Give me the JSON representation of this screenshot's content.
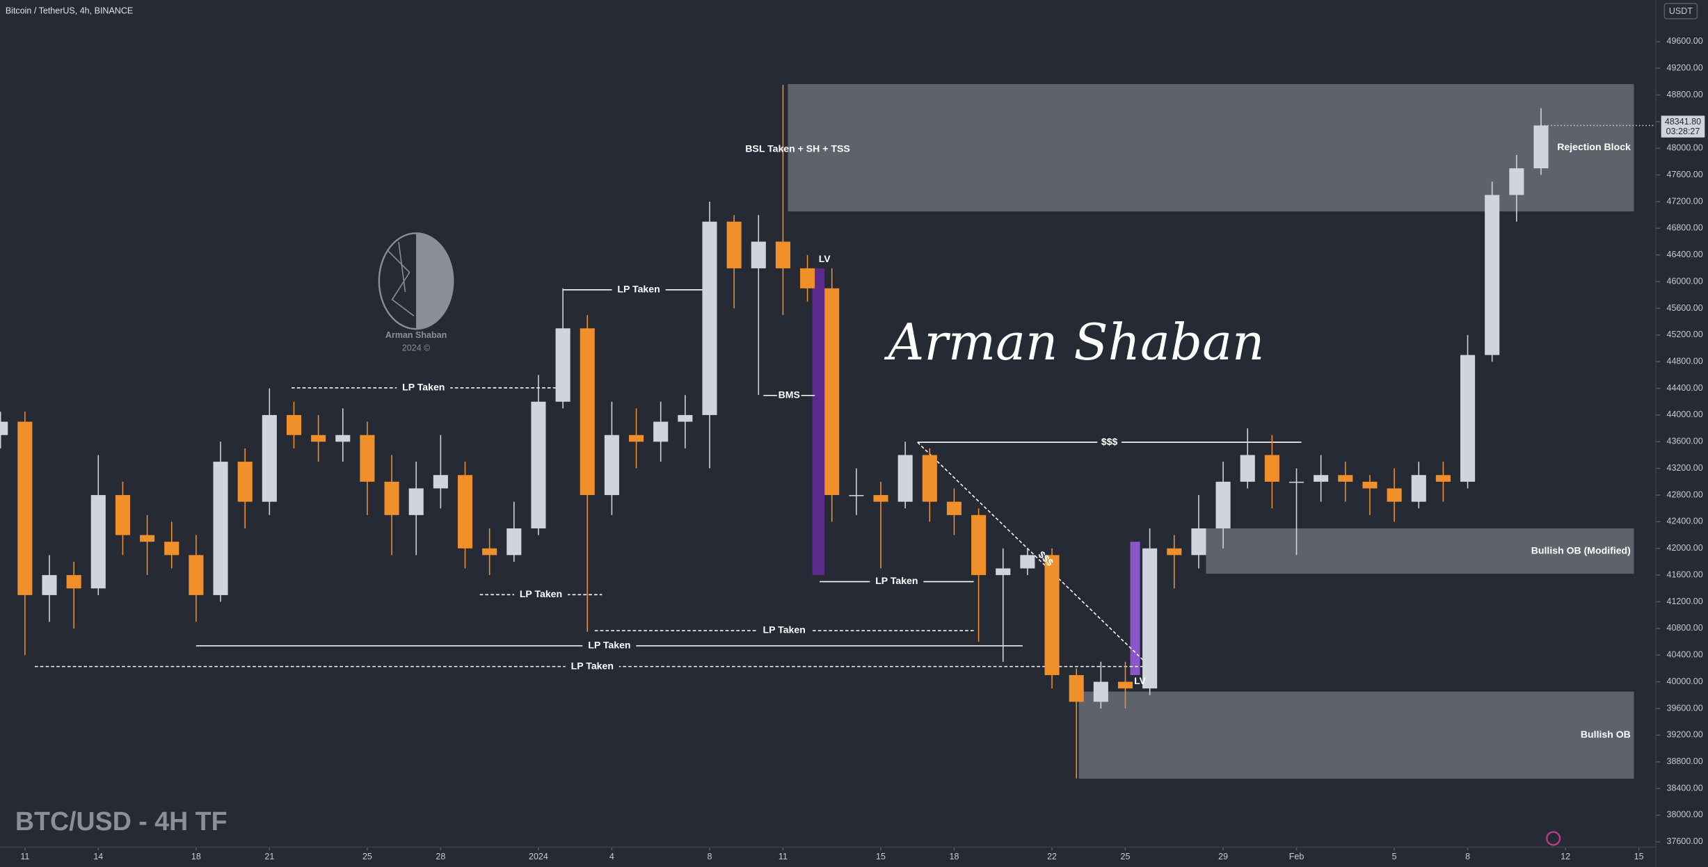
{
  "chart_data": {
    "type": "candlestick",
    "title": "Bitcoin / TetherUS, 4h, BINANCE",
    "currency": "USDT",
    "watermark": "BTC/USD - 4H TF",
    "signature": "Arman Shaban",
    "logo_name": "Arman Shaban",
    "logo_year": "2024 ©",
    "up_color": "#d1d4dc",
    "down_color": "#f0902a",
    "x": [
      -1,
      0,
      1,
      2,
      3,
      4,
      5,
      6,
      7,
      8,
      9,
      10,
      11,
      12,
      13,
      14,
      15,
      16,
      17,
      18,
      19,
      20,
      21,
      22,
      23,
      24,
      25,
      26,
      27,
      28,
      29,
      30,
      31,
      32,
      33,
      34,
      35,
      36,
      37,
      38,
      39,
      40,
      41,
      42,
      43,
      44,
      45,
      46,
      47,
      48,
      49,
      50,
      51,
      52,
      53,
      54,
      55,
      56,
      57,
      58,
      59,
      60,
      61,
      62
    ],
    "open": [
      43700,
      43900,
      41300,
      41600,
      41400,
      42800,
      42200,
      42100,
      41900,
      41300,
      43300,
      42700,
      44000,
      43700,
      43600,
      43700,
      43000,
      42500,
      42900,
      43100,
      42000,
      41900,
      42300,
      44200,
      45300,
      42800,
      43700,
      43600,
      43900,
      44000,
      46900,
      46200,
      46600,
      46200,
      45900,
      42800,
      42800,
      42700,
      43400,
      42700,
      42500,
      41600,
      41700,
      41900,
      40100,
      39700,
      40000,
      39900,
      42000,
      41900,
      42300,
      43000,
      43400,
      43000,
      43000,
      43100,
      43000,
      42900,
      42700,
      43100,
      43000,
      44900,
      47300,
      47700
    ],
    "high": [
      44050,
      44050,
      41900,
      41800,
      43400,
      43000,
      42500,
      42400,
      42200,
      43600,
      43500,
      44400,
      44200,
      44000,
      44100,
      43900,
      43400,
      43300,
      43700,
      43300,
      42300,
      42700,
      44600,
      45900,
      45500,
      44200,
      44100,
      44200,
      44300,
      47200,
      47000,
      47000,
      48950,
      46400,
      46200,
      43200,
      43000,
      43600,
      43500,
      42900,
      42600,
      42000,
      42000,
      42000,
      40200,
      40300,
      40300,
      42300,
      42200,
      42800,
      43300,
      43800,
      43700,
      43200,
      43400,
      43300,
      43100,
      43200,
      43300,
      43300,
      45200,
      47500,
      47900,
      48600
    ],
    "low": [
      43500,
      40400,
      40900,
      40800,
      41300,
      41900,
      41600,
      41700,
      40900,
      41200,
      42300,
      42500,
      43500,
      43300,
      43300,
      42500,
      41900,
      41900,
      42600,
      41700,
      41600,
      41800,
      42200,
      44100,
      40750,
      42500,
      43200,
      43300,
      43500,
      43200,
      45600,
      44300,
      45500,
      45700,
      42400,
      42500,
      41700,
      42600,
      42400,
      42200,
      40600,
      40300,
      41600,
      39900,
      38550,
      39600,
      39600,
      39800,
      41400,
      41700,
      42000,
      42900,
      42600,
      41900,
      42700,
      42700,
      42500,
      42400,
      42600,
      42700,
      42900,
      44800,
      46900,
      47600
    ],
    "close": [
      43900,
      41300,
      41600,
      41400,
      42800,
      42200,
      42100,
      41900,
      41300,
      43300,
      42700,
      44000,
      43700,
      43600,
      43700,
      43000,
      42500,
      42900,
      43100,
      42000,
      41900,
      42300,
      44200,
      45300,
      42800,
      43700,
      43600,
      43900,
      44000,
      46900,
      46200,
      46600,
      46200,
      45900,
      42800,
      42800,
      42700,
      43400,
      42700,
      42500,
      41600,
      41700,
      41900,
      40100,
      39700,
      40000,
      39900,
      42000,
      41900,
      42300,
      43000,
      43400,
      43000,
      43000,
      43100,
      43000,
      42900,
      42700,
      43100,
      43000,
      44900,
      47300,
      47700,
      48341.8
    ],
    "last_price": {
      "value": 48341.8,
      "label": "48341.80"
    },
    "countdown": "03:28:27",
    "xlim": [
      -1.02,
      66.69
    ],
    "xticks": [
      {
        "value": 0,
        "label": "11"
      },
      {
        "value": 3,
        "label": "14"
      },
      {
        "value": 7,
        "label": "18"
      },
      {
        "value": 10,
        "label": "21"
      },
      {
        "value": 14,
        "label": "25"
      },
      {
        "value": 17,
        "label": "28"
      },
      {
        "value": 21,
        "label": "2024"
      },
      {
        "value": 24,
        "label": "4"
      },
      {
        "value": 28,
        "label": "8"
      },
      {
        "value": 31,
        "label": "11"
      },
      {
        "value": 35,
        "label": "15"
      },
      {
        "value": 38,
        "label": "18"
      },
      {
        "value": 42,
        "label": "22"
      },
      {
        "value": 45,
        "label": "25"
      },
      {
        "value": 49,
        "label": "29"
      },
      {
        "value": 52,
        "label": "Feb"
      },
      {
        "value": 56,
        "label": "5"
      },
      {
        "value": 59,
        "label": "8"
      },
      {
        "value": 63,
        "label": "12"
      },
      {
        "value": 66,
        "label": "15"
      }
    ],
    "ylim": [
      37520,
      50220
    ],
    "yticks": [
      {
        "value": 37600,
        "label": "37600.00"
      },
      {
        "value": 38000,
        "label": "38000.00"
      },
      {
        "value": 38400,
        "label": "38400.00"
      },
      {
        "value": 38800,
        "label": "38800.00"
      },
      {
        "value": 39200,
        "label": "39200.00"
      },
      {
        "value": 39600,
        "label": "39600.00"
      },
      {
        "value": 40000,
        "label": "40000.00"
      },
      {
        "value": 40400,
        "label": "40400.00"
      },
      {
        "value": 40800,
        "label": "40800.00"
      },
      {
        "value": 41200,
        "label": "41200.00"
      },
      {
        "value": 41600,
        "label": "41600.00"
      },
      {
        "value": 42000,
        "label": "42000.00"
      },
      {
        "value": 42400,
        "label": "42400.00"
      },
      {
        "value": 42800,
        "label": "42800.00"
      },
      {
        "value": 43200,
        "label": "43200.00"
      },
      {
        "value": 43600,
        "label": "43600.00"
      },
      {
        "value": 44000,
        "label": "44000.00"
      },
      {
        "value": 44400,
        "label": "44400.00"
      },
      {
        "value": 44800,
        "label": "44800.00"
      },
      {
        "value": 45200,
        "label": "45200.00"
      },
      {
        "value": 45600,
        "label": "45600.00"
      },
      {
        "value": 46000,
        "label": "46000.00"
      },
      {
        "value": 46400,
        "label": "46400.00"
      },
      {
        "value": 46800,
        "label": "46800.00"
      },
      {
        "value": 47200,
        "label": "47200.00"
      },
      {
        "value": 47600,
        "label": "47600.00"
      },
      {
        "value": 48000,
        "label": "48000.00"
      },
      {
        "value": 48400,
        "label": "48400.00"
      },
      {
        "value": 48800,
        "label": "48800.00"
      },
      {
        "value": 49200,
        "label": "49200.00"
      },
      {
        "value": 49600,
        "label": "49600.00"
      }
    ],
    "boxes": [
      {
        "label": "Rejection Block",
        "x1": 31.2,
        "x2": 65.8,
        "low": 47053,
        "high": 48963
      },
      {
        "label": "Bullish OB (Modified)",
        "x1": 48.3,
        "x2": 65.8,
        "low": 41620,
        "high": 42300
      },
      {
        "label": "Bullish OB",
        "x1": 43.1,
        "x2": 65.8,
        "low": 38547,
        "high": 39853
      }
    ],
    "zones": [
      {
        "label": "LV",
        "x1": 32.2,
        "x2": 32.7,
        "low": 41600,
        "high": 46200
      },
      {
        "label": "LV",
        "x1": 45.2,
        "x2": 45.6,
        "low": 40100,
        "high": 42100
      }
    ],
    "levels": [
      {
        "label": "LP Taken",
        "price": 45878,
        "x1": 22.0,
        "x2": 28.2,
        "dashed": false
      },
      {
        "label": "LP Taken",
        "price": 44408,
        "x1": 10.9,
        "x2": 21.7,
        "dashed": true
      },
      {
        "label": "LP Taken",
        "price": 41306,
        "x1": 18.6,
        "x2": 23.6,
        "dashed": true
      },
      {
        "label": "LP Taken",
        "price": 40767,
        "x1": 23.3,
        "x2": 38.8,
        "dashed": true
      },
      {
        "label": "LP Taken",
        "price": 40539,
        "x1": 7.0,
        "x2": 40.8,
        "dashed": false
      },
      {
        "label": "LP Taken",
        "price": 40229,
        "x1": 0.4,
        "x2": 46.0,
        "dashed": true
      },
      {
        "label": "LP Taken",
        "price": 41502,
        "x1": 32.5,
        "x2": 38.8,
        "dashed": false
      },
      {
        "label": "$$$",
        "price": 43592,
        "x1": 36.5,
        "x2": 52.2,
        "dashed": false
      },
      {
        "label": "BMS",
        "price": 44294,
        "x1": 30.2,
        "x2": 32.3,
        "dashed": false
      }
    ],
    "diagonal": {
      "label": "$$$",
      "x1": 36.5,
      "p1": 43592,
      "x2": 46.0,
      "p2": 40229
    },
    "notes": [
      {
        "label": "BSL Taken + SH + TSS",
        "x": 31.6,
        "price": 47984
      }
    ]
  }
}
